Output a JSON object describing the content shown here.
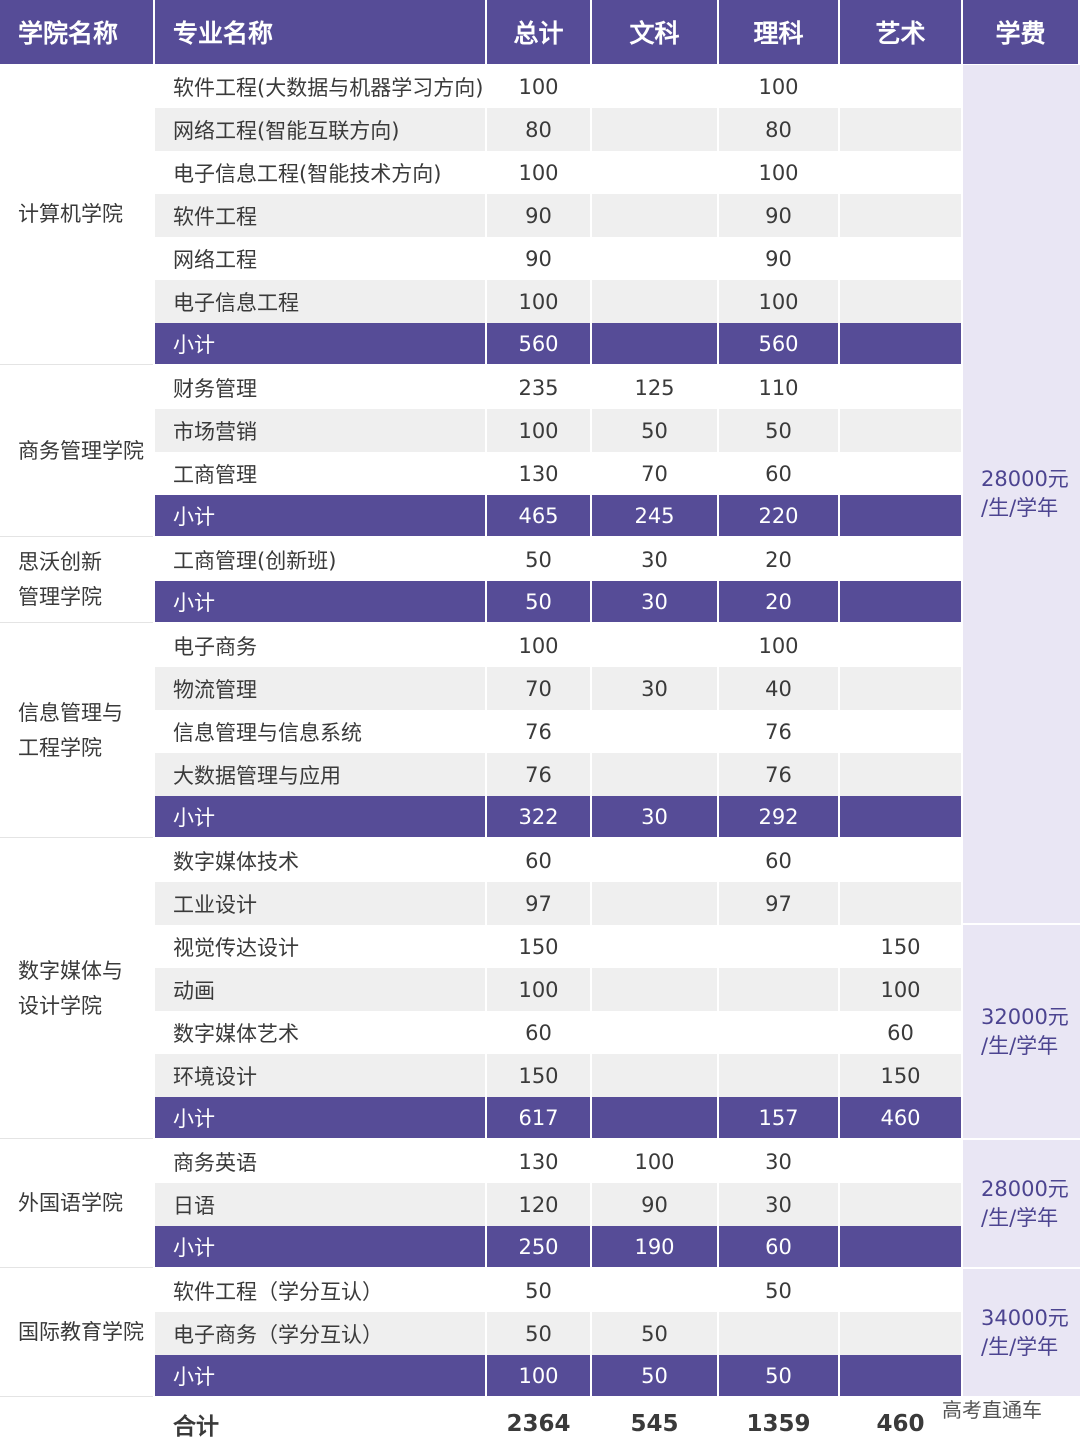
{
  "header": {
    "college": "学院名称",
    "major": "专业名称",
    "total": "总计",
    "liberal_arts": "文科",
    "science": "理科",
    "art": "艺术",
    "tuition": "学费"
  },
  "colleges": [
    {
      "name": "计算机学院",
      "majors": [
        {
          "name": "软件工程(大数据与机器学习方向)",
          "total": "100",
          "wen": "",
          "li": "100",
          "art": ""
        },
        {
          "name": "网络工程(智能互联方向)",
          "total": "80",
          "wen": "",
          "li": "80",
          "art": ""
        },
        {
          "name": "电子信息工程(智能技术方向)",
          "total": "100",
          "wen": "",
          "li": "100",
          "art": ""
        },
        {
          "name": "软件工程",
          "total": "90",
          "wen": "",
          "li": "90",
          "art": ""
        },
        {
          "name": "网络工程",
          "total": "90",
          "wen": "",
          "li": "90",
          "art": ""
        },
        {
          "name": "电子信息工程",
          "total": "100",
          "wen": "",
          "li": "100",
          "art": ""
        }
      ],
      "subtotal": {
        "label": "小计",
        "total": "560",
        "wen": "",
        "li": "560",
        "art": ""
      }
    },
    {
      "name": "商务管理学院",
      "majors": [
        {
          "name": "财务管理",
          "total": "235",
          "wen": "125",
          "li": "110",
          "art": ""
        },
        {
          "name": "市场营销",
          "total": "100",
          "wen": "50",
          "li": "50",
          "art": ""
        },
        {
          "name": "工商管理",
          "total": "130",
          "wen": "70",
          "li": "60",
          "art": ""
        }
      ],
      "subtotal": {
        "label": "小计",
        "total": "465",
        "wen": "245",
        "li": "220",
        "art": ""
      }
    },
    {
      "name": "思沃创新\n管理学院",
      "majors": [
        {
          "name": "工商管理(创新班)",
          "total": "50",
          "wen": "30",
          "li": "20",
          "art": ""
        }
      ],
      "subtotal": {
        "label": "小计",
        "total": "50",
        "wen": "30",
        "li": "20",
        "art": ""
      }
    },
    {
      "name": "信息管理与\n工程学院",
      "majors": [
        {
          "name": "电子商务",
          "total": "100",
          "wen": "",
          "li": "100",
          "art": ""
        },
        {
          "name": "物流管理",
          "total": "70",
          "wen": "30",
          "li": "40",
          "art": ""
        },
        {
          "name": "信息管理与信息系统",
          "total": "76",
          "wen": "",
          "li": "76",
          "art": ""
        },
        {
          "name": "大数据管理与应用",
          "total": "76",
          "wen": "",
          "li": "76",
          "art": ""
        }
      ],
      "subtotal": {
        "label": "小计",
        "total": "322",
        "wen": "30",
        "li": "292",
        "art": ""
      }
    },
    {
      "name": "数字媒体与\n设计学院",
      "majors": [
        {
          "name": "数字媒体技术",
          "total": "60",
          "wen": "",
          "li": "60",
          "art": ""
        },
        {
          "name": "工业设计",
          "total": "97",
          "wen": "",
          "li": "97",
          "art": ""
        },
        {
          "name": "视觉传达设计",
          "total": "150",
          "wen": "",
          "li": "",
          "art": "150"
        },
        {
          "name": "动画",
          "total": "100",
          "wen": "",
          "li": "",
          "art": "100"
        },
        {
          "name": "数字媒体艺术",
          "total": "60",
          "wen": "",
          "li": "",
          "art": "60"
        },
        {
          "name": "环境设计",
          "total": "150",
          "wen": "",
          "li": "",
          "art": "150"
        }
      ],
      "subtotal": {
        "label": "小计",
        "total": "617",
        "wen": "",
        "li": "157",
        "art": "460"
      }
    },
    {
      "name": "外国语学院",
      "majors": [
        {
          "name": "商务英语",
          "total": "130",
          "wen": "100",
          "li": "30",
          "art": ""
        },
        {
          "name": "日语",
          "total": "120",
          "wen": "90",
          "li": "30",
          "art": ""
        }
      ],
      "subtotal": {
        "label": "小计",
        "total": "250",
        "wen": "190",
        "li": "60",
        "art": ""
      }
    },
    {
      "name": "国际教育学院",
      "majors": [
        {
          "name": "软件工程（学分互认）",
          "total": "50",
          "wen": "",
          "li": "50",
          "art": ""
        },
        {
          "name": "电子商务（学分互认）",
          "total": "50",
          "wen": "50",
          "li": "",
          "art": ""
        }
      ],
      "subtotal": {
        "label": "小计",
        "total": "100",
        "wen": "50",
        "li": "50",
        "art": ""
      }
    }
  ],
  "fees": [
    {
      "label": "28000元\n/生/学年"
    },
    {
      "label": "32000元\n/生/学年"
    },
    {
      "label": "28000元\n/生/学年"
    },
    {
      "label": "34000元\n/生/学年"
    }
  ],
  "grand_total": {
    "label": "合计",
    "total": "2364",
    "wen": "545",
    "li": "1359",
    "art": "460"
  },
  "watermark": "高考直通车",
  "colors": {
    "header": "#564c97",
    "fee_bg": "#e9e6f4",
    "stripe": "#efefef"
  }
}
